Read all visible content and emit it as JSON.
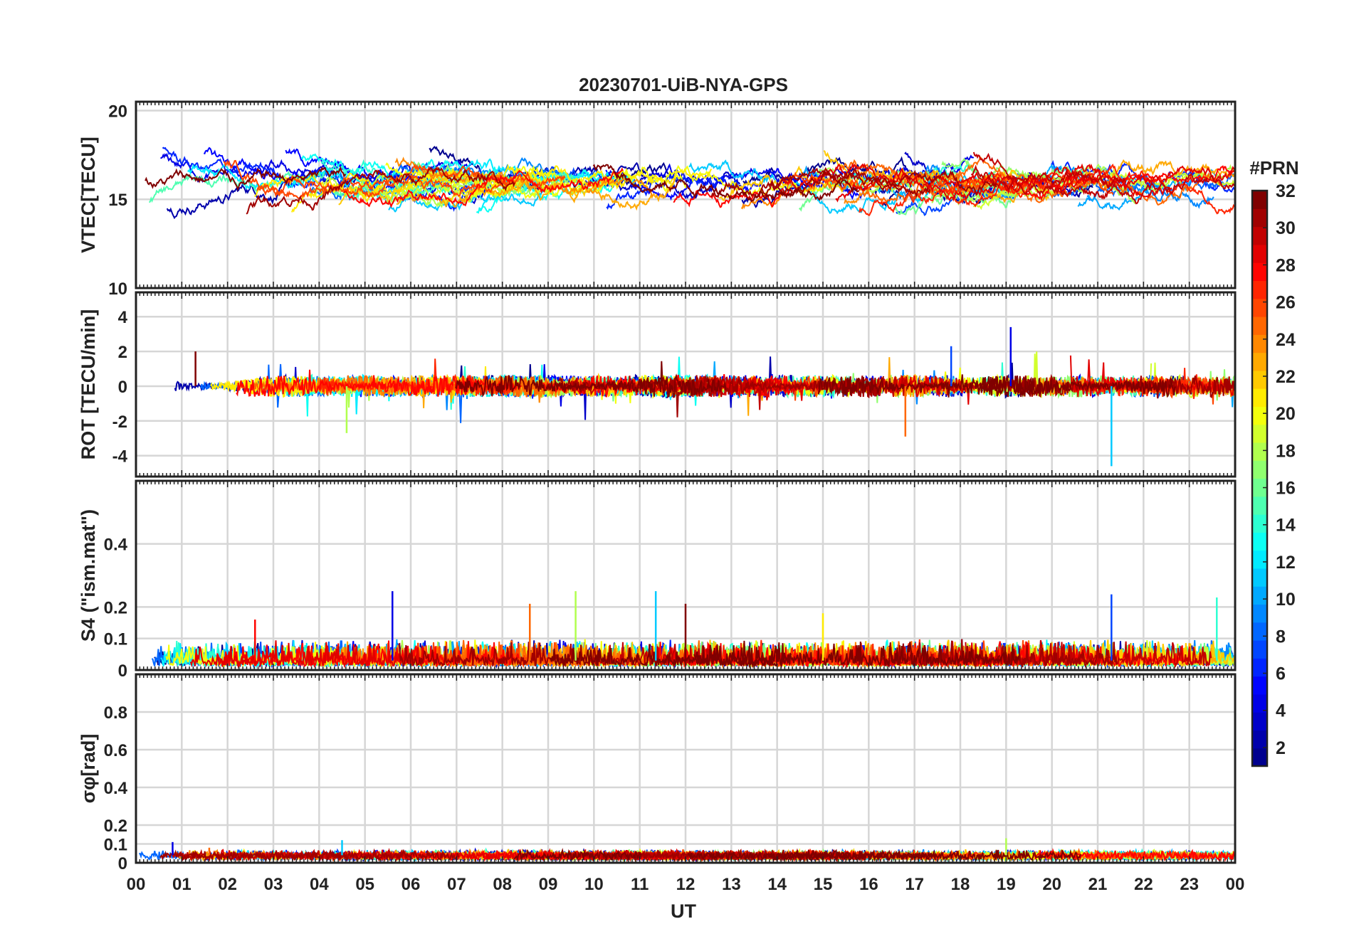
{
  "chart_data": {
    "type": "line",
    "title": "20230701-UiB-NYA-GPS",
    "xlabel": "UT",
    "x_tick_labels": [
      "00",
      "01",
      "02",
      "03",
      "04",
      "05",
      "06",
      "07",
      "08",
      "09",
      "10",
      "11",
      "12",
      "13",
      "14",
      "15",
      "16",
      "17",
      "18",
      "19",
      "20",
      "21",
      "22",
      "23",
      "00"
    ],
    "xlim_hours": [
      0,
      24
    ],
    "grid": true,
    "colorbar": {
      "title": "#PRN",
      "range": [
        1,
        32
      ],
      "tick_labels": [
        "2",
        "4",
        "6",
        "8",
        "10",
        "12",
        "14",
        "16",
        "18",
        "20",
        "22",
        "24",
        "26",
        "28",
        "30",
        "32"
      ],
      "colormap": "jet",
      "colormap_stops": [
        "#00008f",
        "#0000ff",
        "#0080ff",
        "#00ffff",
        "#80ff80",
        "#ffff00",
        "#ff8000",
        "#ff0000",
        "#800000"
      ]
    },
    "panels": [
      {
        "id": "vtec",
        "ylabel": "VTEC[TECU]",
        "ylim": [
          10,
          20.5
        ],
        "y_tick_labels": [
          "10",
          "15",
          "20"
        ],
        "y_ticks": [
          10,
          15,
          20
        ],
        "approx_level": 16,
        "variability": 1.4,
        "notes": "slant-path vertical TEC per satellite, mostly between 12 and 19 TECU"
      },
      {
        "id": "rot",
        "ylabel": "ROT [TECU/min]",
        "ylim": [
          -5.2,
          5.4
        ],
        "y_tick_labels": [
          "-4",
          "-2",
          "0",
          "2",
          "4"
        ],
        "y_ticks": [
          -4,
          -2,
          0,
          2,
          4
        ],
        "approx_level": 0,
        "variability": 0.4,
        "peaks": [
          [
            19.1,
            3.4
          ],
          [
            21.3,
            -4.6
          ],
          [
            4.6,
            -2.7
          ],
          [
            16.8,
            -2.9
          ],
          [
            1.3,
            2.0
          ],
          [
            17.8,
            2.3
          ]
        ]
      },
      {
        "id": "s4",
        "ylabel": "S4 (\"ism.mat\")",
        "ylim": [
          0,
          0.6
        ],
        "y_tick_labels": [
          "0",
          "0.1",
          "0.2",
          "0.4"
        ],
        "y_ticks": [
          0,
          0.1,
          0.2,
          0.4
        ],
        "approx_level": 0.03,
        "variability": 0.03,
        "peaks": [
          [
            5.6,
            0.25
          ],
          [
            11.35,
            0.25
          ],
          [
            9.6,
            0.25
          ],
          [
            8.6,
            0.21
          ],
          [
            12.0,
            0.21
          ],
          [
            21.3,
            0.24
          ],
          [
            23.6,
            0.23
          ],
          [
            15.0,
            0.18
          ],
          [
            2.6,
            0.16
          ]
        ]
      },
      {
        "id": "sigma_phi",
        "ylabel": "σφ[rad]",
        "ylim": [
          0,
          1
        ],
        "y_tick_labels": [
          "0",
          "0.1",
          "0.2",
          "0.4",
          "0.6",
          "0.8"
        ],
        "y_ticks": [
          0,
          0.1,
          0.2,
          0.4,
          0.6,
          0.8
        ],
        "approx_level": 0.04,
        "variability": 0.01,
        "peaks": [
          [
            0.8,
            0.11
          ],
          [
            4.5,
            0.12
          ],
          [
            19.0,
            0.13
          ],
          [
            1.6,
            0.08
          ]
        ]
      }
    ]
  }
}
